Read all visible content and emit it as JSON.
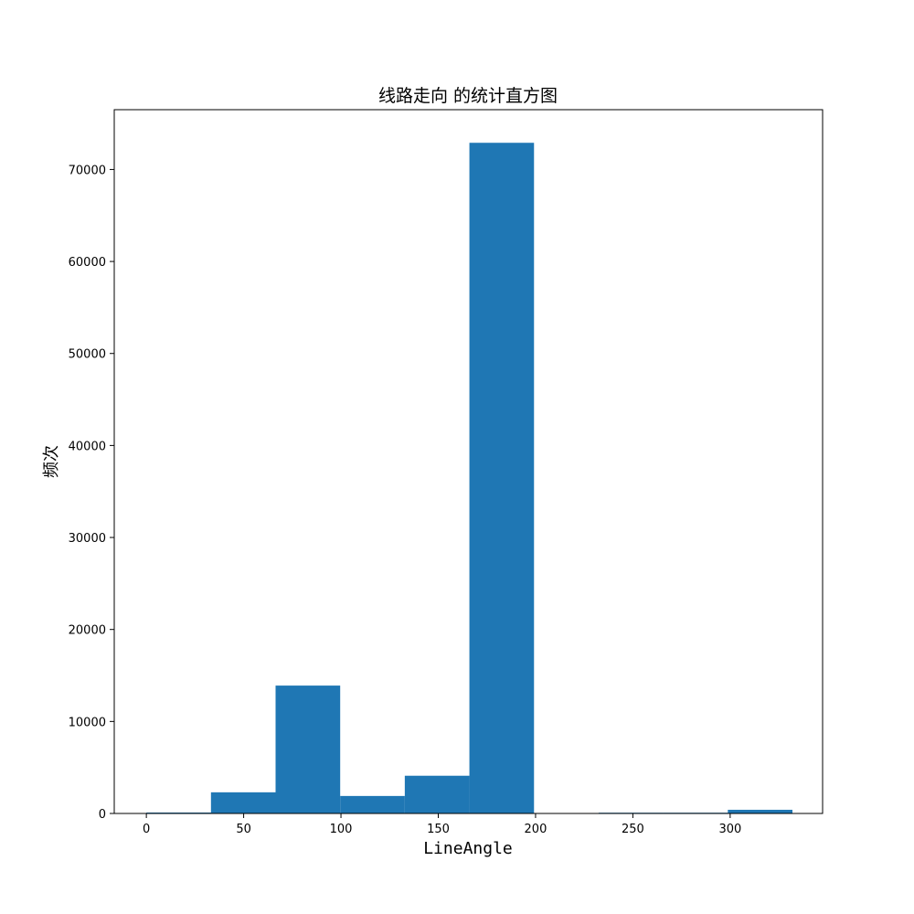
{
  "chart_data": {
    "type": "bar",
    "title": "线路走向 的统计直方图",
    "xlabel": "LineAngle",
    "ylabel": "频次",
    "xlim": [
      -16.5,
      347.5
    ],
    "ylim": [
      0,
      76500
    ],
    "bins": [
      {
        "x0": 0,
        "x1": 33.2,
        "value": 100
      },
      {
        "x0": 33.2,
        "x1": 66.4,
        "value": 2300
      },
      {
        "x0": 66.4,
        "x1": 99.6,
        "value": 13900
      },
      {
        "x0": 99.6,
        "x1": 132.8,
        "value": 1900
      },
      {
        "x0": 132.8,
        "x1": 166.0,
        "value": 4100
      },
      {
        "x0": 166.0,
        "x1": 199.2,
        "value": 72900
      },
      {
        "x0": 199.2,
        "x1": 232.4,
        "value": 0
      },
      {
        "x0": 232.4,
        "x1": 265.6,
        "value": 80
      },
      {
        "x0": 265.6,
        "x1": 298.8,
        "value": 80
      },
      {
        "x0": 298.8,
        "x1": 332.0,
        "value": 400
      }
    ],
    "xticks": [
      0,
      50,
      100,
      150,
      200,
      250,
      300
    ],
    "yticks": [
      0,
      10000,
      20000,
      30000,
      40000,
      50000,
      60000,
      70000
    ],
    "bar_color": "#1f77b4",
    "grid": false
  }
}
